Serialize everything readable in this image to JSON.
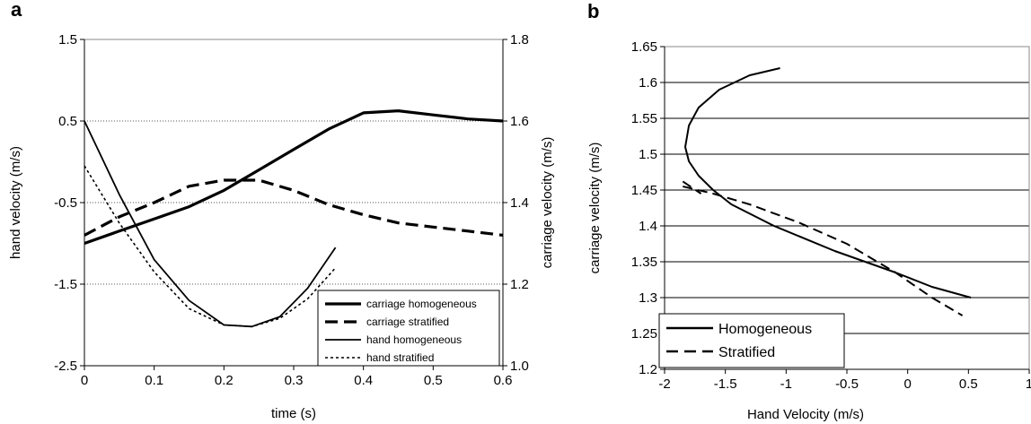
{
  "chart_data": [
    {
      "panel_label": "a",
      "type": "line",
      "xlabel": "time (s)",
      "ylabel": "hand velocity (m/s)",
      "y2label": "carriage velocity (m/s)",
      "xlim": [
        0,
        0.6
      ],
      "ylim": [
        -2.5,
        1.5
      ],
      "y2lim": [
        1.0,
        1.8
      ],
      "xticks": [
        "0",
        "0.1",
        "0.2",
        "0.3",
        "0.4",
        "0.5",
        "0.6"
      ],
      "yticks": [
        "-2.5",
        "-1.5",
        "-0.5",
        "0.5",
        "1.5"
      ],
      "y2ticks": [
        "1.0",
        "1.2",
        "1.4",
        "1.6",
        "1.8"
      ],
      "grid": "dotted horizontal at y-ticks",
      "legend_position": "bottom-right",
      "series": [
        {
          "name": "carriage homogeneous",
          "axis": "y2",
          "style": "thick-solid",
          "x": [
            0,
            0.05,
            0.1,
            0.15,
            0.2,
            0.25,
            0.3,
            0.35,
            0.4,
            0.45,
            0.5,
            0.55,
            0.6
          ],
          "y": [
            1.3,
            1.33,
            1.36,
            1.39,
            1.43,
            1.48,
            1.53,
            1.58,
            1.62,
            1.625,
            1.615,
            1.605,
            1.6
          ]
        },
        {
          "name": "carriage stratified",
          "axis": "y2",
          "style": "thick-dash",
          "x": [
            0,
            0.05,
            0.1,
            0.15,
            0.2,
            0.25,
            0.3,
            0.35,
            0.4,
            0.45,
            0.5,
            0.55,
            0.6
          ],
          "y": [
            1.32,
            1.365,
            1.4,
            1.44,
            1.455,
            1.455,
            1.43,
            1.395,
            1.37,
            1.35,
            1.34,
            1.33,
            1.32
          ]
        },
        {
          "name": "hand homogeneous",
          "axis": "y",
          "style": "thin-solid",
          "x": [
            0,
            0.05,
            0.1,
            0.15,
            0.2,
            0.24,
            0.28,
            0.32,
            0.36
          ],
          "y": [
            0.5,
            -0.4,
            -1.2,
            -1.7,
            -2.0,
            -2.02,
            -1.9,
            -1.55,
            -1.05
          ]
        },
        {
          "name": "hand stratified",
          "axis": "y",
          "style": "dotted",
          "x": [
            0,
            0.05,
            0.1,
            0.15,
            0.2,
            0.24,
            0.28,
            0.32,
            0.36
          ],
          "y": [
            -0.05,
            -0.75,
            -1.35,
            -1.8,
            -2.0,
            -2.02,
            -1.92,
            -1.68,
            -1.3
          ]
        }
      ]
    },
    {
      "panel_label": "b",
      "type": "line",
      "xlabel": "Hand Velocity (m/s)",
      "ylabel": "carriage velocity (m/s)",
      "xlim": [
        -2,
        1
      ],
      "ylim": [
        1.2,
        1.65
      ],
      "xticks": [
        "-2",
        "-1.5",
        "-1",
        "-0.5",
        "0",
        "0.5",
        "1"
      ],
      "yticks": [
        "1.2",
        "1.25",
        "1.3",
        "1.35",
        "1.4",
        "1.45",
        "1.5",
        "1.55",
        "1.6",
        "1.65"
      ],
      "grid": "solid horizontal at y-ticks",
      "legend_position": "bottom-left",
      "series": [
        {
          "name": "Homogeneous",
          "style": "solid",
          "x": [
            -1.05,
            -1.3,
            -1.55,
            -1.72,
            -1.8,
            -1.83,
            -1.8,
            -1.72,
            -1.6,
            -1.45,
            -1.1,
            -0.6,
            -0.1,
            0.2,
            0.52
          ],
          "y": [
            1.62,
            1.61,
            1.59,
            1.565,
            1.54,
            1.51,
            1.49,
            1.47,
            1.45,
            1.43,
            1.4,
            1.365,
            1.335,
            1.315,
            1.3
          ]
        },
        {
          "name": "Stratified",
          "style": "dash",
          "x": [
            -1.85,
            -1.6,
            -1.3,
            -0.9,
            -0.5,
            -0.1,
            0.2,
            0.45
          ],
          "y": [
            1.455,
            1.445,
            1.43,
            1.405,
            1.375,
            1.335,
            1.3,
            1.275
          ]
        },
        {
          "name": "",
          "style": "dash",
          "x": [
            -1.85,
            -1.7
          ],
          "y": [
            1.462,
            1.445
          ]
        }
      ]
    }
  ]
}
